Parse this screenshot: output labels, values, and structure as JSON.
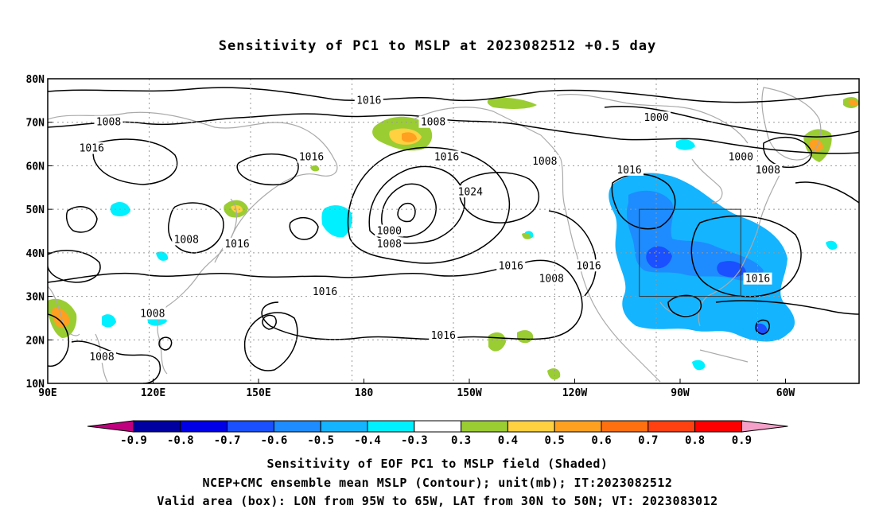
{
  "title": "Sensitivity of PC1 to MSLP at 2023082512 +0.5 day",
  "map": {
    "lat_labels": [
      "80N",
      "70N",
      "60N",
      "50N",
      "40N",
      "30N",
      "20N",
      "10N"
    ],
    "lon_labels": [
      "90E",
      "120E",
      "150E",
      "180",
      "150W",
      "120W",
      "90W",
      "60W"
    ],
    "contour_labels": [
      {
        "text": "1016",
        "lon": 185,
        "lat": 75
      },
      {
        "text": "1008",
        "lon": 204,
        "lat": 70
      },
      {
        "text": "1000",
        "lon": 270,
        "lat": 71
      },
      {
        "text": "1008",
        "lon": 108,
        "lat": 70
      },
      {
        "text": "1016",
        "lon": 103,
        "lat": 64
      },
      {
        "text": "1016",
        "lon": 168,
        "lat": 62
      },
      {
        "text": "1016",
        "lon": 208,
        "lat": 62
      },
      {
        "text": "1008",
        "lon": 237,
        "lat": 61
      },
      {
        "text": "1016",
        "lon": 262,
        "lat": 59
      },
      {
        "text": "1000",
        "lon": 295,
        "lat": 62
      },
      {
        "text": "1008",
        "lon": 303,
        "lat": 59
      },
      {
        "text": "1024",
        "lon": 215,
        "lat": 54
      },
      {
        "text": "1000",
        "lon": 191,
        "lat": 45
      },
      {
        "text": "1008",
        "lon": 191,
        "lat": 42
      },
      {
        "text": "1008",
        "lon": 131,
        "lat": 43
      },
      {
        "text": "1016",
        "lon": 146,
        "lat": 42
      },
      {
        "text": "1016",
        "lon": 227,
        "lat": 37
      },
      {
        "text": "1016",
        "lon": 250,
        "lat": 37
      },
      {
        "text": "1008",
        "lon": 239,
        "lat": 34
      },
      {
        "text": "1016",
        "lon": 172,
        "lat": 31
      },
      {
        "text": "1016",
        "lon": 300,
        "lat": 34
      },
      {
        "text": "1008",
        "lon": 121,
        "lat": 26
      },
      {
        "text": "1016",
        "lon": 207,
        "lat": 21
      },
      {
        "text": "1008",
        "lon": 106,
        "lat": 16
      }
    ],
    "valid_box": {
      "lon_west": -95,
      "lon_east": -65,
      "lat_south": 30,
      "lat_north": 50
    }
  },
  "colorbar": {
    "labels": [
      "-0.9",
      "-0.8",
      "-0.7",
      "-0.6",
      "-0.5",
      "-0.4",
      "-0.3",
      "0.3",
      "0.4",
      "0.5",
      "0.6",
      "0.7",
      "0.8",
      "0.9"
    ],
    "low_arrow_color": "#c0007f",
    "high_arrow_color": "#f5a0c8",
    "colors": [
      "#0000a0",
      "#0000e6",
      "#1a50ff",
      "#1e8cff",
      "#14b4ff",
      "#00f0ff",
      "#ffffff",
      "#9acd32",
      "#ffd040",
      "#ffa020",
      "#ff7010",
      "#ff4010",
      "#ff0000"
    ]
  },
  "captions": {
    "line1": "Sensitivity of EOF PC1 to MSLP field (Shaded)",
    "line2": "NCEP+CMC ensemble mean MSLP (Contour); unit(mb); IT:2023082512",
    "line3": "Valid area (box): LON from 95W to 65W, LAT from 30N to 50N; VT: 2023083012"
  }
}
